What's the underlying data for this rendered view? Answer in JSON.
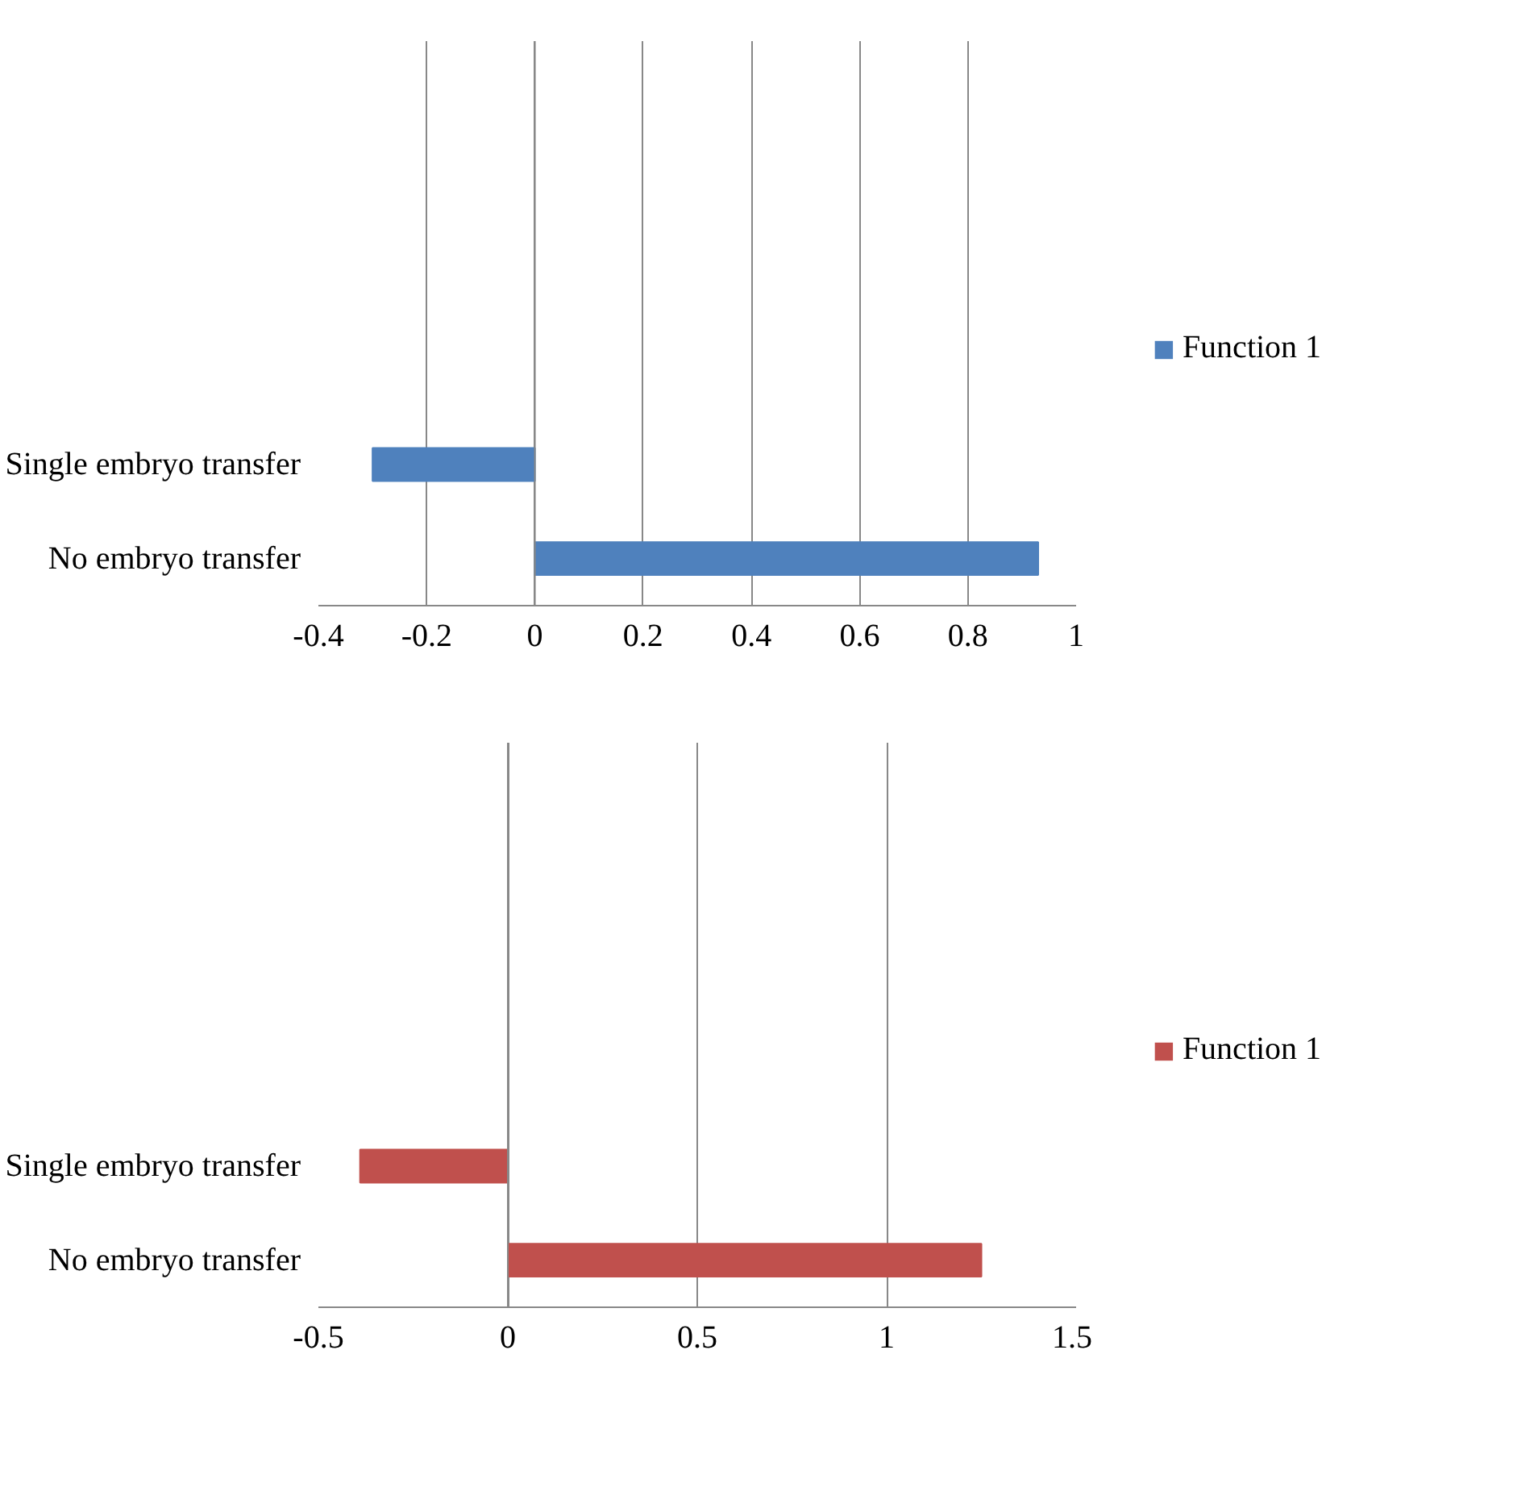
{
  "chart_data": [
    {
      "type": "bar",
      "orientation": "horizontal",
      "categories": [
        null,
        null,
        null,
        null,
        "Single embryo transfer",
        "No embryo transfer"
      ],
      "series": [
        {
          "name": "Function 1",
          "color": "#4f81bd",
          "values": [
            null,
            null,
            null,
            null,
            -0.3,
            0.93
          ]
        }
      ],
      "xlim": [
        -0.4,
        1
      ],
      "xticks": [
        -0.4,
        -0.2,
        0,
        0.2,
        0.4,
        0.6,
        0.8,
        1
      ],
      "grid": "x",
      "legend": "right"
    },
    {
      "type": "bar",
      "orientation": "horizontal",
      "categories": [
        null,
        null,
        null,
        null,
        "Single embryo transfer",
        "No embryo transfer"
      ],
      "series": [
        {
          "name": "Function 1",
          "color": "#c0504d",
          "values": [
            null,
            null,
            null,
            null,
            -0.39,
            1.25
          ]
        }
      ],
      "xlim": [
        -0.5,
        1.5
      ],
      "xticks": [
        -0.5,
        0,
        0.5,
        1,
        1.5
      ],
      "grid": "x",
      "legend": "right"
    }
  ]
}
